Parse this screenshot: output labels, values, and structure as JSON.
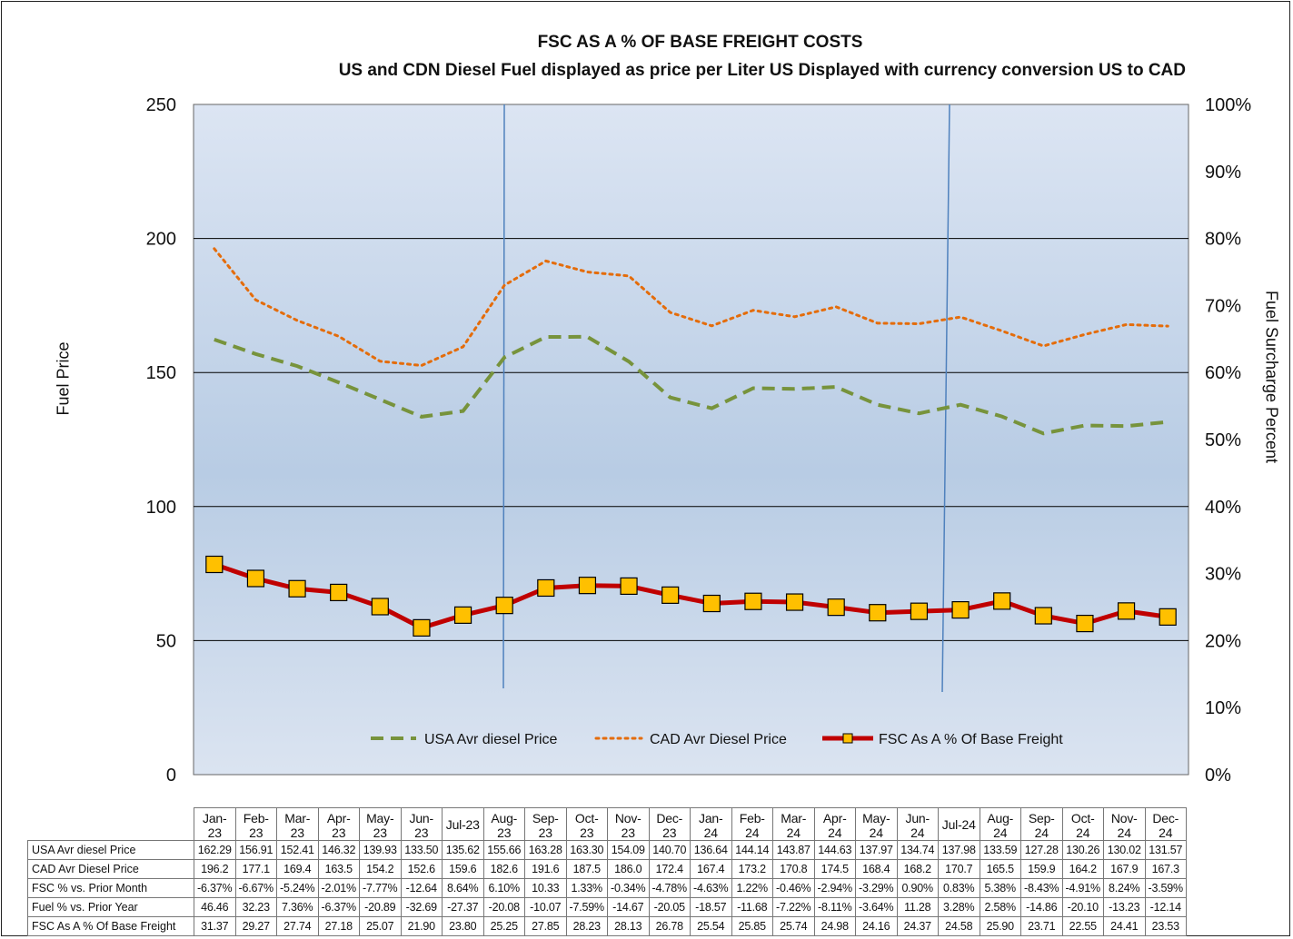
{
  "chart_data": {
    "type": "line",
    "title": "FSC AS A % OF BASE FREIGHT COSTS",
    "subtitle": "US and CDN Diesel Fuel displayed as price per Liter US Displayed with currency conversion US to CAD",
    "ylabel_left": "Fuel Price",
    "ylabel_right": "Fuel Surcharge Percent",
    "y_left_lim": [
      0,
      250
    ],
    "y_left_ticks": [
      "0",
      "50",
      "100",
      "150",
      "200",
      "250"
    ],
    "y_right_lim": [
      0,
      100
    ],
    "y_right_ticks": [
      "0%",
      "10%",
      "20%",
      "30%",
      "40%",
      "50%",
      "60%",
      "70%",
      "80%",
      "90%",
      "100%"
    ],
    "categories": [
      "Jan-23",
      "Feb-23",
      "Mar-23",
      "Apr-23",
      "May-23",
      "Jun-23",
      "Jul-23",
      "Aug-23",
      "Sep-23",
      "Oct-23",
      "Nov-23",
      "Dec-23",
      "Jan-24",
      "Feb-24",
      "Mar-24",
      "Apr-24",
      "May-24",
      "Jun-24",
      "Jul-24",
      "Aug-24",
      "Sep-24",
      "Oct-24",
      "Nov-24",
      "Dec-24"
    ],
    "category_labels": [
      [
        "Jan-",
        "23"
      ],
      [
        "Feb-",
        "23"
      ],
      [
        "Mar-",
        "23"
      ],
      [
        "Apr-",
        "23"
      ],
      [
        "May-",
        "23"
      ],
      [
        "Jun-",
        "23"
      ],
      [
        "Jul-23"
      ],
      [
        "Aug-",
        "23"
      ],
      [
        "Sep-",
        "23"
      ],
      [
        "Oct-",
        "23"
      ],
      [
        "Nov-",
        "23"
      ],
      [
        "Dec-",
        "23"
      ],
      [
        "Jan-",
        "24"
      ],
      [
        "Feb-",
        "24"
      ],
      [
        "Mar-",
        "24"
      ],
      [
        "Apr-",
        "24"
      ],
      [
        "May-",
        "24"
      ],
      [
        "Jun-",
        "24"
      ],
      [
        "Jul-24"
      ],
      [
        "Aug-",
        "24"
      ],
      [
        "Sep-",
        "24"
      ],
      [
        "Oct-",
        "24"
      ],
      [
        "Nov-",
        "24"
      ],
      [
        "Dec-",
        "24"
      ]
    ],
    "series": [
      {
        "name": "USA Avr diesel Price",
        "axis": "left",
        "style": "dashed",
        "color": "#77933c",
        "values": [
          162.29,
          156.91,
          152.41,
          146.32,
          139.93,
          133.5,
          135.62,
          155.66,
          163.28,
          163.3,
          154.09,
          140.7,
          136.64,
          144.14,
          143.87,
          144.63,
          137.97,
          134.74,
          137.98,
          133.59,
          127.28,
          130.26,
          130.02,
          131.57
        ]
      },
      {
        "name": "CAD Avr Diesel Price",
        "axis": "left",
        "style": "dotted",
        "color": "#e46c0a",
        "values": [
          196.2,
          177.1,
          169.4,
          163.5,
          154.2,
          152.6,
          159.6,
          182.6,
          191.6,
          187.5,
          186.0,
          172.4,
          167.4,
          173.2,
          170.8,
          174.5,
          168.4,
          168.2,
          170.7,
          165.5,
          159.9,
          164.2,
          167.9,
          167.3
        ]
      },
      {
        "name": "FSC As A % Of Base Freight",
        "axis": "right",
        "style": "line-markers",
        "color": "#c00000",
        "marker_color": "#ffc000",
        "values": [
          31.37,
          29.27,
          27.74,
          27.18,
          25.07,
          21.9,
          23.8,
          25.25,
          27.85,
          28.23,
          28.13,
          26.78,
          25.54,
          25.85,
          25.74,
          24.98,
          24.16,
          24.37,
          24.58,
          25.9,
          23.71,
          22.55,
          24.41,
          23.53
        ]
      }
    ],
    "legend_position": "bottom-inside",
    "grid": true,
    "table": {
      "rows": [
        {
          "label": "USA Avr diesel Price",
          "values": [
            "162.29",
            "156.91",
            "152.41",
            "146.32",
            "139.93",
            "133.50",
            "135.62",
            "155.66",
            "163.28",
            "163.30",
            "154.09",
            "140.70",
            "136.64",
            "144.14",
            "143.87",
            "144.63",
            "137.97",
            "134.74",
            "137.98",
            "133.59",
            "127.28",
            "130.26",
            "130.02",
            "131.57"
          ]
        },
        {
          "label": "CAD Avr Diesel Price",
          "values": [
            "196.2",
            "177.1",
            "169.4",
            "163.5",
            "154.2",
            "152.6",
            "159.6",
            "182.6",
            "191.6",
            "187.5",
            "186.0",
            "172.4",
            "167.4",
            "173.2",
            "170.8",
            "174.5",
            "168.4",
            "168.2",
            "170.7",
            "165.5",
            "159.9",
            "164.2",
            "167.9",
            "167.3"
          ]
        },
        {
          "label": "FSC % vs. Prior Month",
          "values": [
            "-6.37%",
            "-6.67%",
            "-5.24%",
            "-2.01%",
            "-7.77%",
            "-12.64",
            "8.64%",
            "6.10%",
            "10.33",
            "1.33%",
            "-0.34%",
            "-4.78%",
            "-4.63%",
            "1.22%",
            "-0.46%",
            "-2.94%",
            "-3.29%",
            "0.90%",
            "0.83%",
            "5.38%",
            "-8.43%",
            "-4.91%",
            "8.24%",
            "-3.59%"
          ]
        },
        {
          "label": "Fuel % vs. Prior Year",
          "values": [
            "46.46",
            "32.23",
            "7.36%",
            "-6.37%",
            "-20.89",
            "-32.69",
            "-27.37",
            "-20.08",
            "-10.07",
            "-7.59%",
            "-14.67",
            "-20.05",
            "-18.57",
            "-11.68",
            "-7.22%",
            "-8.11%",
            "-3.64%",
            "11.28",
            "3.28%",
            "2.58%",
            "-14.86",
            "-20.10",
            "-13.23",
            "-12.14"
          ]
        },
        {
          "label": "FSC As A % Of Base Freight",
          "values": [
            "31.37",
            "29.27",
            "27.74",
            "27.18",
            "25.07",
            "21.90",
            "23.80",
            "25.25",
            "27.85",
            "28.23",
            "28.13",
            "26.78",
            "25.54",
            "25.85",
            "25.74",
            "24.98",
            "24.16",
            "24.37",
            "24.58",
            "25.90",
            "23.71",
            "22.55",
            "24.41",
            "23.53"
          ]
        }
      ]
    },
    "colors": {
      "plot_bg_top": "#dce5f3",
      "plot_bg_bottom": "#b8cce4",
      "divider_line": "#4f81bd"
    }
  }
}
